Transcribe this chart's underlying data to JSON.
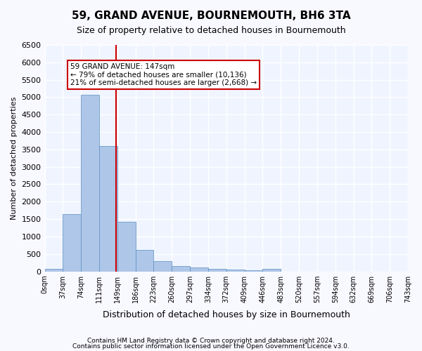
{
  "title": "59, GRAND AVENUE, BOURNEMOUTH, BH6 3TA",
  "subtitle": "Size of property relative to detached houses in Bournemouth",
  "xlabel": "Distribution of detached houses by size in Bournemouth",
  "ylabel": "Number of detached properties",
  "bar_color": "#aec6e8",
  "bar_edge_color": "#5a8fc2",
  "background_color": "#f0f4ff",
  "grid_color": "#ffffff",
  "annotation_box_color": "#cc0000",
  "vline_color": "#cc0000",
  "bin_labels": [
    "0sqm",
    "37sqm",
    "74sqm",
    "111sqm",
    "149sqm",
    "186sqm",
    "223sqm",
    "260sqm",
    "297sqm",
    "334sqm",
    "372sqm",
    "409sqm",
    "446sqm",
    "483sqm",
    "520sqm",
    "557sqm",
    "594sqm",
    "632sqm",
    "669sqm",
    "706sqm",
    "743sqm"
  ],
  "bar_heights": [
    75,
    1650,
    5060,
    3600,
    1420,
    620,
    295,
    145,
    110,
    75,
    55,
    35,
    70,
    0,
    0,
    0,
    0,
    0,
    0,
    0
  ],
  "ylim": [
    0,
    6500
  ],
  "yticks": [
    0,
    500,
    1000,
    1500,
    2000,
    2500,
    3000,
    3500,
    4000,
    4500,
    5000,
    5500,
    6000,
    6500
  ],
  "property_size": 147,
  "property_bin_index": 3,
  "vline_x": 3,
  "annotation_text": "59 GRAND AVENUE: 147sqm\n← 79% of detached houses are smaller (10,136)\n21% of semi-detached houses are larger (2,668) →",
  "footnote1": "Contains HM Land Registry data © Crown copyright and database right 2024.",
  "footnote2": "Contains public sector information licensed under the Open Government Licence v3.0."
}
